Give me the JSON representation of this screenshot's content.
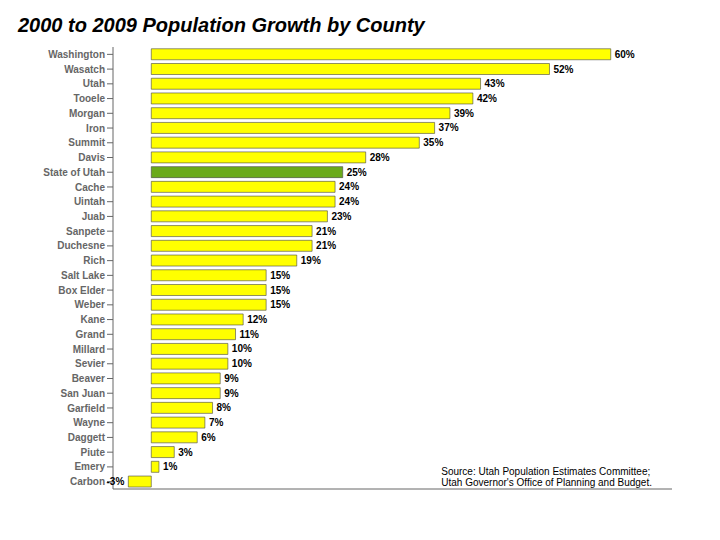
{
  "chart_data": {
    "type": "bar",
    "orientation": "horizontal",
    "title": "2000 to 2009 Population Growth by County",
    "categories": [
      "Washington",
      "Wasatch",
      "Utah",
      "Tooele",
      "Morgan",
      "Iron",
      "Summit",
      "Davis",
      "State of Utah",
      "Cache",
      "Uintah",
      "Juab",
      "Sanpete",
      "Duchesne",
      "Rich",
      "Salt Lake",
      "Box Elder",
      "Weber",
      "Kane",
      "Grand",
      "Millard",
      "Sevier",
      "Beaver",
      "San Juan",
      "Garfield",
      "Wayne",
      "Daggett",
      "Piute",
      "Emery",
      "Carbon"
    ],
    "values": [
      60,
      52,
      43,
      42,
      39,
      37,
      35,
      28,
      25,
      24,
      24,
      23,
      21,
      21,
      19,
      15,
      15,
      15,
      12,
      11,
      10,
      10,
      9,
      9,
      8,
      7,
      6,
      3,
      1,
      -3
    ],
    "value_labels": [
      "60%",
      "52%",
      "43%",
      "42%",
      "39%",
      "37%",
      "35%",
      "28%",
      "25%",
      "24%",
      "24%",
      "23%",
      "21%",
      "21%",
      "19%",
      "15%",
      "15%",
      "15%",
      "12%",
      "11%",
      "10%",
      "10%",
      "9%",
      "9%",
      "8%",
      "7%",
      "6%",
      "3%",
      "1%",
      "-3%"
    ],
    "colors": [
      "#FFFF00",
      "#FFFF00",
      "#FFFF00",
      "#FFFF00",
      "#FFFF00",
      "#FFFF00",
      "#FFFF00",
      "#FFFF00",
      "#6aaa1a",
      "#FFFF00",
      "#FFFF00",
      "#FFFF00",
      "#FFFF00",
      "#FFFF00",
      "#FFFF00",
      "#FFFF00",
      "#FFFF00",
      "#FFFF00",
      "#FFFF00",
      "#FFFF00",
      "#FFFF00",
      "#FFFF00",
      "#FFFF00",
      "#FFFF00",
      "#FFFF00",
      "#FFFF00",
      "#FFFF00",
      "#FFFF00",
      "#FFFF00",
      "#FFFF00"
    ],
    "xlim": [
      -5,
      68
    ],
    "data_labels": true,
    "tick_labels": "y",
    "grid": false,
    "annotations": [
      "Source: Utah Population Estimates Committee;\nUtah Governor's Office of Planning and Budget."
    ]
  }
}
